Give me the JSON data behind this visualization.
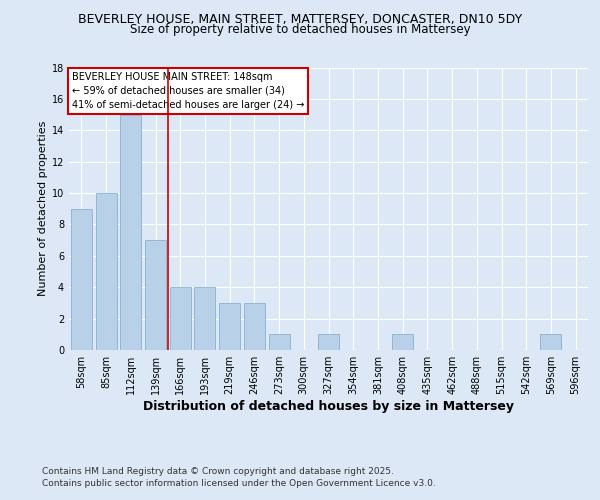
{
  "title1": "BEVERLEY HOUSE, MAIN STREET, MATTERSEY, DONCASTER, DN10 5DY",
  "title2": "Size of property relative to detached houses in Mattersey",
  "xlabel": "Distribution of detached houses by size in Mattersey",
  "ylabel": "Number of detached properties",
  "categories": [
    "58sqm",
    "85sqm",
    "112sqm",
    "139sqm",
    "166sqm",
    "193sqm",
    "219sqm",
    "246sqm",
    "273sqm",
    "300sqm",
    "327sqm",
    "354sqm",
    "381sqm",
    "408sqm",
    "435sqm",
    "462sqm",
    "488sqm",
    "515sqm",
    "542sqm",
    "569sqm",
    "596sqm"
  ],
  "values": [
    9,
    10,
    15,
    7,
    4,
    4,
    3,
    3,
    1,
    0,
    1,
    0,
    0,
    1,
    0,
    0,
    0,
    0,
    0,
    1,
    0
  ],
  "bar_color": "#b8d0e8",
  "bar_edge_color": "#7aaac8",
  "annotation_text": "BEVERLEY HOUSE MAIN STREET: 148sqm\n← 59% of detached houses are smaller (34)\n41% of semi-detached houses are larger (24) →",
  "annotation_box_color": "#ffffff",
  "annotation_border_color": "#cc0000",
  "vline_x": 3.5,
  "vline_color": "#cc0000",
  "ylim": [
    0,
    18
  ],
  "yticks": [
    0,
    2,
    4,
    6,
    8,
    10,
    12,
    14,
    16,
    18
  ],
  "footer": "Contains HM Land Registry data © Crown copyright and database right 2025.\nContains public sector information licensed under the Open Government Licence v3.0.",
  "bg_color": "#dce8f5",
  "fig_color": "#dce8f5",
  "grid_color": "#ffffff",
  "title_fontsize": 9,
  "subtitle_fontsize": 8.5,
  "axis_label_fontsize": 8,
  "xlabel_fontsize": 9,
  "tick_fontsize": 7,
  "footer_fontsize": 6.5,
  "annotation_fontsize": 7
}
